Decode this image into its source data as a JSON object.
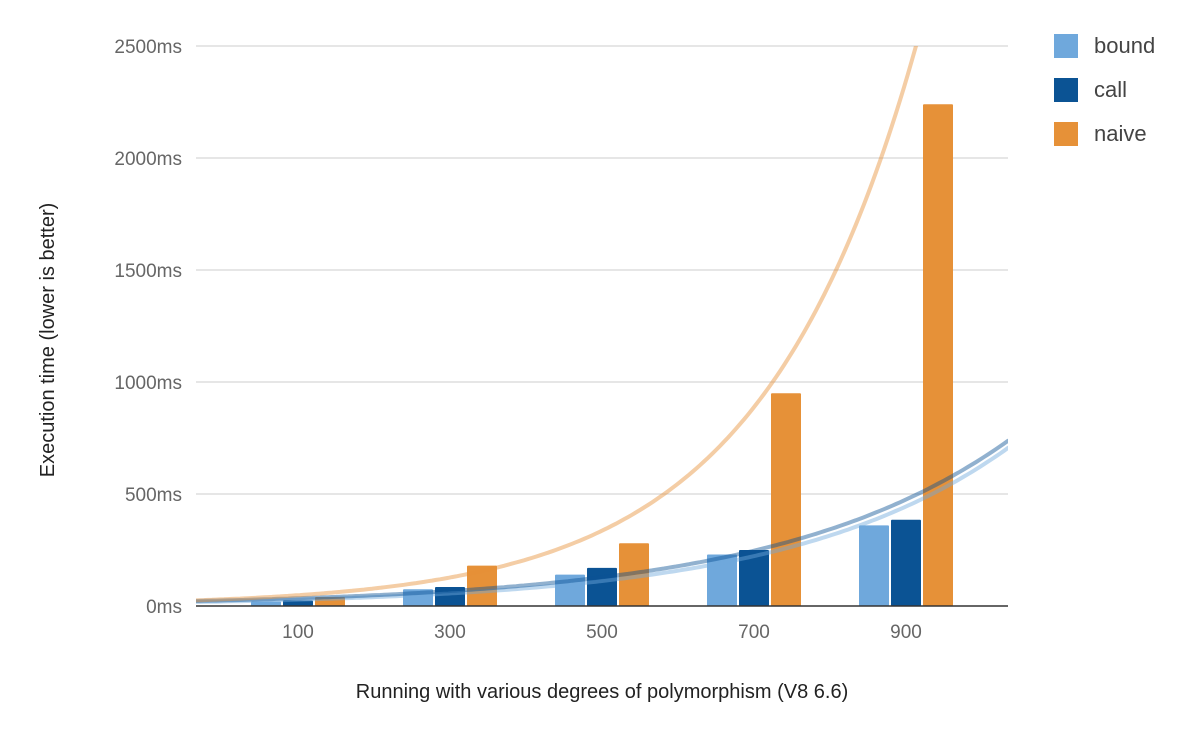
{
  "chart_data": {
    "type": "bar",
    "title": "",
    "xlabel": "Running with various degrees of polymorphism (V8 6.6)",
    "ylabel": "Execution time (lower is better)",
    "categories": [
      "100",
      "300",
      "500",
      "700",
      "900"
    ],
    "ylim": [
      0,
      2500
    ],
    "yticks": [
      0,
      500,
      1000,
      1500,
      2000,
      2500
    ],
    "ytick_labels": [
      "0ms",
      "500ms",
      "1000ms",
      "1500ms",
      "2000ms",
      "2500ms"
    ],
    "grid": true,
    "legend_position": "top-right",
    "series": [
      {
        "name": "bound",
        "color": "#6fa8dc",
        "values": [
          20,
          75,
          140,
          230,
          360
        ]
      },
      {
        "name": "call",
        "color": "#0b5394",
        "values": [
          25,
          85,
          170,
          250,
          385
        ]
      },
      {
        "name": "naive",
        "color": "#e69138",
        "values": [
          40,
          180,
          280,
          950,
          2240
        ]
      }
    ],
    "trendlines": {
      "type": "exponential",
      "series": [
        "bound",
        "call",
        "naive"
      ]
    }
  }
}
